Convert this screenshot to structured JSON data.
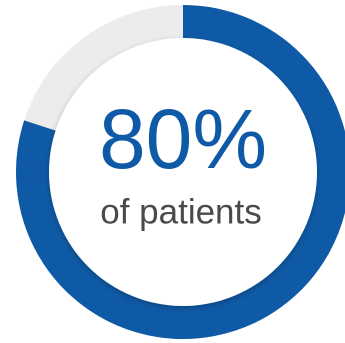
{
  "chart_data": {
    "type": "donut",
    "values": [
      80
    ],
    "value_labels": [
      "80%"
    ],
    "label": "of patients",
    "color": "#0f5aa6",
    "track_color": "#ececec"
  }
}
